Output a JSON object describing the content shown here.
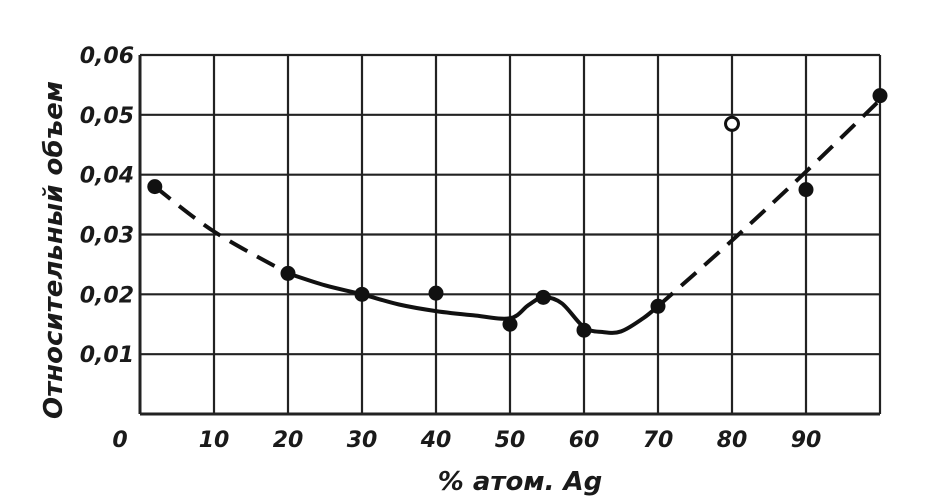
{
  "chart_data": {
    "type": "line",
    "title": "",
    "xlabel": "% атом. Ag",
    "ylabel": "Относительный объем",
    "xlim": [
      0,
      100
    ],
    "ylim": [
      0,
      0.06
    ],
    "x_ticks": [
      "0",
      "10",
      "20",
      "30",
      "40",
      "50",
      "60",
      "70",
      "80",
      "90"
    ],
    "y_ticks": [
      "0,01",
      "0,02",
      "0,03",
      "0,04",
      "0,05",
      "0,06"
    ],
    "grid": true,
    "series": [
      {
        "style": "points-filled",
        "points": [
          [
            2,
            0.038
          ],
          [
            20,
            0.0235
          ],
          [
            30,
            0.02
          ],
          [
            40,
            0.0202
          ],
          [
            50,
            0.015
          ],
          [
            54.5,
            0.0195
          ],
          [
            60,
            0.014
          ],
          [
            70,
            0.018
          ],
          [
            90,
            0.0375
          ],
          [
            100,
            0.0532
          ]
        ]
      },
      {
        "style": "points-open",
        "points": [
          [
            80,
            0.0485
          ]
        ]
      },
      {
        "style": "solid-curve",
        "points": [
          [
            20,
            0.0235
          ],
          [
            25,
            0.0215
          ],
          [
            30,
            0.02
          ],
          [
            35,
            0.0183
          ],
          [
            40,
            0.0172
          ],
          [
            45,
            0.0165
          ],
          [
            50,
            0.016
          ],
          [
            52.5,
            0.0182
          ],
          [
            54.5,
            0.0195
          ],
          [
            57,
            0.0185
          ],
          [
            60,
            0.0145
          ],
          [
            62.5,
            0.0137
          ],
          [
            65,
            0.0138
          ],
          [
            68,
            0.016
          ],
          [
            70,
            0.018
          ]
        ]
      },
      {
        "style": "dashed-curve",
        "points": [
          [
            2,
            0.038
          ],
          [
            10,
            0.0305
          ],
          [
            20,
            0.0235
          ]
        ]
      },
      {
        "style": "dashed-curve",
        "points": [
          [
            70,
            0.018
          ],
          [
            80,
            0.029
          ],
          [
            90,
            0.0405
          ],
          [
            100,
            0.0525
          ]
        ]
      }
    ]
  }
}
